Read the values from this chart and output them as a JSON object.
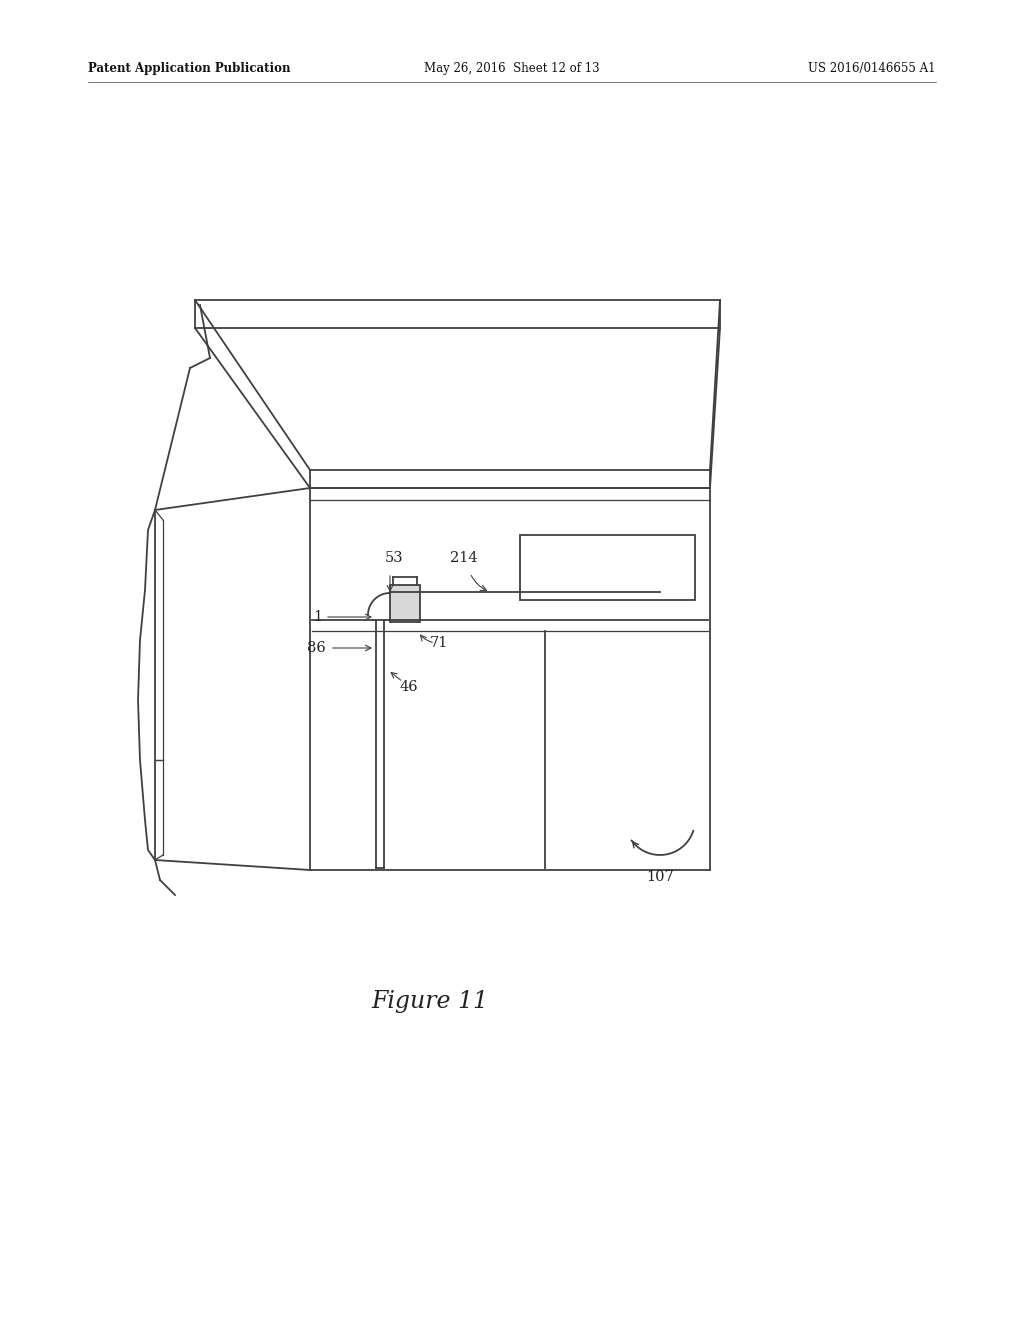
{
  "bg_color": "#ffffff",
  "line_color": "#404040",
  "line_width": 1.3,
  "header_left": "Patent Application Publication",
  "header_center": "May 26, 2016  Sheet 12 of 13",
  "header_right": "US 2016/0146655 A1",
  "figure_label": "Figure 11",
  "fig_width": 10.24,
  "fig_height": 13.2,
  "dpi": 100
}
